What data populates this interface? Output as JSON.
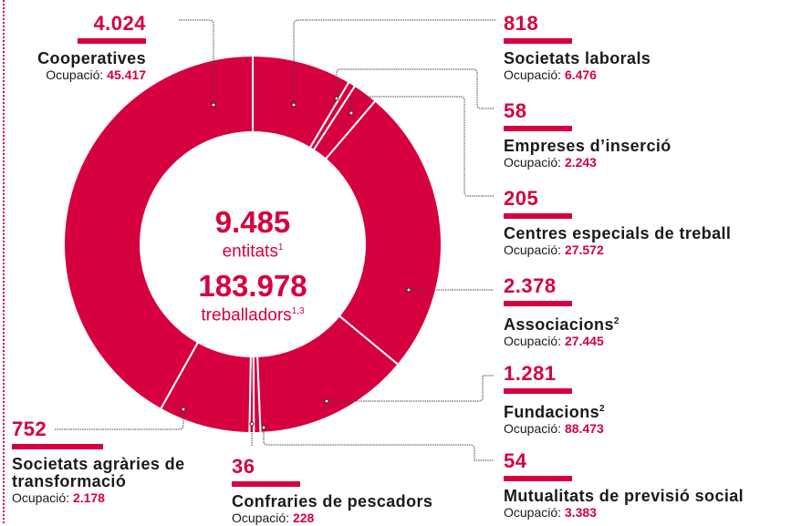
{
  "chart_data": {
    "type": "donut",
    "color": "#d6003f",
    "center": {
      "entities_value": "9.485",
      "entities_label": "entitats",
      "entities_note": "1",
      "workers_value": "183.978",
      "workers_label": "treballadors",
      "workers_note": "1,3"
    },
    "occupation_label": "Ocupació:",
    "slices": [
      {
        "name": "Societats laborals",
        "note": "",
        "value": 818,
        "value_label": "818",
        "occupation": "6.476"
      },
      {
        "name": "Empreses d’inserció",
        "note": "",
        "value": 58,
        "value_label": "58",
        "occupation": "2.243"
      },
      {
        "name": "Centres especials de treball",
        "note": "",
        "value": 205,
        "value_label": "205",
        "occupation": "27.572"
      },
      {
        "name": "Associacions",
        "note": "2",
        "value": 2378,
        "value_label": "2.378",
        "occupation": "27.445"
      },
      {
        "name": "Fundacions",
        "note": "2",
        "value": 1281,
        "value_label": "1.281",
        "occupation": "88.473"
      },
      {
        "name": "Mutualitats de previsió social",
        "note": "",
        "value": 54,
        "value_label": "54",
        "occupation": "3.383"
      },
      {
        "name": "Confraries de pescadors",
        "note": "",
        "value": 36,
        "value_label": "36",
        "occupation": "228"
      },
      {
        "name": "Societats agràries de transformació",
        "note": "",
        "value": 752,
        "value_label": "752",
        "occupation": "2.178"
      },
      {
        "name": "Cooperatives",
        "note": "",
        "value": 4024,
        "value_label": "4.024",
        "occupation": "45.417"
      }
    ]
  }
}
